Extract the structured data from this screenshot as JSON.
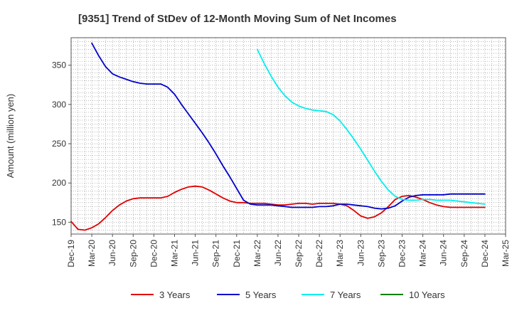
{
  "chart_data": {
    "type": "line",
    "title": "[9351]  Trend of StDev of 12-Month Moving Sum of Net Incomes",
    "xlabel": "",
    "ylabel": "Amount (million yen)",
    "ylim": [
      135,
      385
    ],
    "yticks": [
      150,
      200,
      250,
      300,
      350
    ],
    "x_ticks": [
      "Dec-19",
      "Mar-20",
      "Jun-20",
      "Sep-20",
      "Dec-20",
      "Mar-21",
      "Jun-21",
      "Sep-21",
      "Dec-21",
      "Mar-22",
      "Jun-22",
      "Sep-22",
      "Dec-22",
      "Mar-23",
      "Jun-23",
      "Sep-23",
      "Dec-23",
      "Mar-24",
      "Jun-24",
      "Sep-24",
      "Dec-24",
      "Mar-25"
    ],
    "grid": true,
    "legend_position": "bottom",
    "series": [
      {
        "name": "3 Years",
        "color": "#e00000",
        "x": [
          "Dec-19",
          "Jan-20",
          "Feb-20",
          "Mar-20",
          "Apr-20",
          "May-20",
          "Jun-20",
          "Jul-20",
          "Aug-20",
          "Sep-20",
          "Oct-20",
          "Nov-20",
          "Dec-20",
          "Jan-21",
          "Feb-21",
          "Mar-21",
          "Apr-21",
          "May-21",
          "Jun-21",
          "Jul-21",
          "Aug-21",
          "Sep-21",
          "Oct-21",
          "Nov-21",
          "Dec-21",
          "Jan-22",
          "Feb-22",
          "Mar-22",
          "Apr-22",
          "May-22",
          "Jun-22",
          "Jul-22",
          "Aug-22",
          "Sep-22",
          "Oct-22",
          "Nov-22",
          "Dec-22",
          "Jan-23",
          "Feb-23",
          "Mar-23",
          "Apr-23",
          "May-23",
          "Jun-23",
          "Jul-23",
          "Aug-23",
          "Sep-23",
          "Oct-23",
          "Nov-23",
          "Dec-23",
          "Jan-24",
          "Feb-24",
          "Mar-24",
          "Apr-24",
          "May-24",
          "Jun-24",
          "Jul-24",
          "Aug-24",
          "Sep-24",
          "Oct-24",
          "Nov-24",
          "Dec-24"
        ],
        "values": [
          151,
          141,
          140,
          143,
          148,
          156,
          165,
          172,
          177,
          180,
          181,
          181,
          181,
          181,
          183,
          188,
          192,
          195,
          196,
          195,
          191,
          186,
          181,
          177,
          175,
          175,
          174,
          174,
          174,
          173,
          172,
          172,
          173,
          174,
          174,
          173,
          174,
          174,
          174,
          173,
          171,
          165,
          158,
          155,
          157,
          162,
          170,
          179,
          183,
          184,
          182,
          179,
          175,
          172,
          170,
          169,
          169,
          169,
          169,
          169,
          169
        ]
      },
      {
        "name": "5 Years",
        "color": "#0000cc",
        "x": [
          "Mar-20",
          "Apr-20",
          "May-20",
          "Jun-20",
          "Jul-20",
          "Aug-20",
          "Sep-20",
          "Oct-20",
          "Nov-20",
          "Dec-20",
          "Jan-21",
          "Feb-21",
          "Mar-21",
          "Apr-21",
          "May-21",
          "Jun-21",
          "Jul-21",
          "Aug-21",
          "Sep-21",
          "Oct-21",
          "Nov-21",
          "Dec-21",
          "Jan-22",
          "Feb-22",
          "Mar-22",
          "Apr-22",
          "May-22",
          "Jun-22",
          "Jul-22",
          "Aug-22",
          "Sep-22",
          "Oct-22",
          "Nov-22",
          "Dec-22",
          "Jan-23",
          "Feb-23",
          "Mar-23",
          "Apr-23",
          "May-23",
          "Jun-23",
          "Jul-23",
          "Aug-23",
          "Sep-23",
          "Oct-23",
          "Nov-23",
          "Dec-23",
          "Jan-24",
          "Feb-24",
          "Mar-24",
          "Apr-24",
          "May-24",
          "Jun-24",
          "Jul-24",
          "Aug-24",
          "Sep-24",
          "Oct-24",
          "Nov-24",
          "Dec-24"
        ],
        "values": [
          378,
          362,
          348,
          339,
          335,
          332,
          329,
          327,
          326,
          326,
          326,
          322,
          313,
          300,
          288,
          276,
          264,
          251,
          237,
          222,
          208,
          193,
          178,
          173,
          172,
          172,
          172,
          171,
          170,
          169,
          169,
          169,
          169,
          170,
          170,
          171,
          173,
          173,
          172,
          171,
          170,
          168,
          167,
          168,
          171,
          177,
          182,
          184,
          185,
          185,
          185,
          185,
          186,
          186,
          186,
          186,
          186,
          186
        ]
      },
      {
        "name": "7 Years",
        "color": "#00eeee",
        "x": [
          "Mar-22",
          "Apr-22",
          "May-22",
          "Jun-22",
          "Jul-22",
          "Aug-22",
          "Sep-22",
          "Oct-22",
          "Nov-22",
          "Dec-22",
          "Jan-23",
          "Feb-23",
          "Mar-23",
          "Apr-23",
          "May-23",
          "Jun-23",
          "Jul-23",
          "Aug-23",
          "Sep-23",
          "Oct-23",
          "Nov-23",
          "Dec-23",
          "Jan-24",
          "Feb-24",
          "Mar-24",
          "Apr-24",
          "May-24",
          "Jun-24",
          "Jul-24",
          "Aug-24",
          "Sep-24",
          "Oct-24",
          "Nov-24",
          "Dec-24"
        ],
        "values": [
          370,
          352,
          336,
          322,
          311,
          303,
          298,
          295,
          293,
          292,
          291,
          287,
          279,
          268,
          256,
          243,
          229,
          215,
          202,
          191,
          183,
          179,
          178,
          178,
          179,
          179,
          178,
          178,
          178,
          177,
          176,
          175,
          174,
          173
        ]
      },
      {
        "name": "10 Years",
        "color": "#008000",
        "x": [],
        "values": []
      }
    ]
  }
}
